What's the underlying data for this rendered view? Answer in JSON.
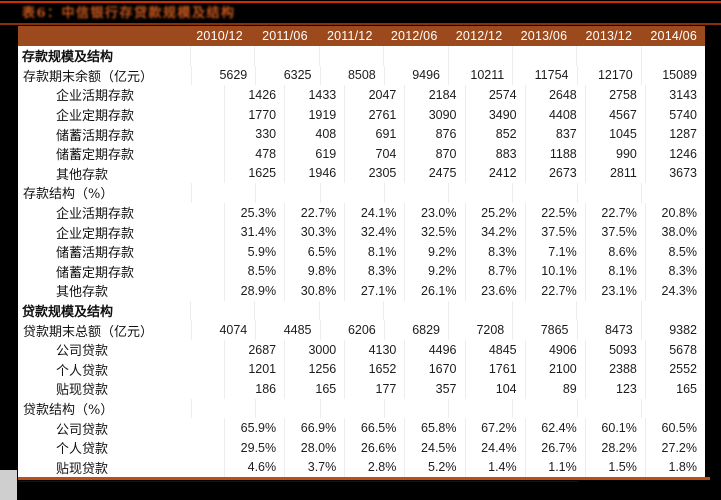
{
  "title": "表6：中信银行存贷款规模及结构",
  "columns": [
    "2010/12",
    "2011/06",
    "2011/12",
    "2012/06",
    "2012/12",
    "2013/06",
    "2013/12",
    "2014/06"
  ],
  "table": {
    "rows": [
      {
        "type": "section",
        "label": "存款规模及结构",
        "values": []
      },
      {
        "type": "sub",
        "label": "存款期末余额（亿元）",
        "values": [
          "5629",
          "6325",
          "8508",
          "9496",
          "10211",
          "11754",
          "12170",
          "15089"
        ]
      },
      {
        "type": "item",
        "label": "企业活期存款",
        "values": [
          "1426",
          "1433",
          "2047",
          "2184",
          "2574",
          "2648",
          "2758",
          "3143"
        ]
      },
      {
        "type": "item",
        "label": "企业定期存款",
        "values": [
          "1770",
          "1919",
          "2761",
          "3090",
          "3490",
          "4408",
          "4567",
          "5740"
        ]
      },
      {
        "type": "item",
        "label": "储蓄活期存款",
        "values": [
          "330",
          "408",
          "691",
          "876",
          "852",
          "837",
          "1045",
          "1287"
        ]
      },
      {
        "type": "item",
        "label": "储蓄定期存款",
        "values": [
          "478",
          "619",
          "704",
          "870",
          "883",
          "1188",
          "990",
          "1246"
        ]
      },
      {
        "type": "item",
        "label": "其他存款",
        "values": [
          "1625",
          "1946",
          "2305",
          "2475",
          "2412",
          "2673",
          "2811",
          "3673"
        ]
      },
      {
        "type": "sub",
        "label": "存款结构（%）",
        "values": []
      },
      {
        "type": "item",
        "label": "企业活期存款",
        "values": [
          "25.3%",
          "22.7%",
          "24.1%",
          "23.0%",
          "25.2%",
          "22.5%",
          "22.7%",
          "20.8%"
        ]
      },
      {
        "type": "item",
        "label": "企业定期存款",
        "values": [
          "31.4%",
          "30.3%",
          "32.4%",
          "32.5%",
          "34.2%",
          "37.5%",
          "37.5%",
          "38.0%"
        ]
      },
      {
        "type": "item",
        "label": "储蓄活期存款",
        "values": [
          "5.9%",
          "6.5%",
          "8.1%",
          "9.2%",
          "8.3%",
          "7.1%",
          "8.6%",
          "8.5%"
        ]
      },
      {
        "type": "item",
        "label": "储蓄定期存款",
        "values": [
          "8.5%",
          "9.8%",
          "8.3%",
          "9.2%",
          "8.7%",
          "10.1%",
          "8.1%",
          "8.3%"
        ]
      },
      {
        "type": "item",
        "label": "其他存款",
        "values": [
          "28.9%",
          "30.8%",
          "27.1%",
          "26.1%",
          "23.6%",
          "22.7%",
          "23.1%",
          "24.3%"
        ]
      },
      {
        "type": "section",
        "label": "贷款规模及结构",
        "values": []
      },
      {
        "type": "sub",
        "label": "贷款期末总额（亿元）",
        "values": [
          "4074",
          "4485",
          "6206",
          "6829",
          "7208",
          "7865",
          "8473",
          "9382"
        ]
      },
      {
        "type": "item",
        "label": "公司贷款",
        "values": [
          "2687",
          "3000",
          "4130",
          "4496",
          "4845",
          "4906",
          "5093",
          "5678"
        ]
      },
      {
        "type": "item",
        "label": "个人贷款",
        "values": [
          "1201",
          "1256",
          "1652",
          "1670",
          "1761",
          "2100",
          "2388",
          "2552"
        ]
      },
      {
        "type": "item",
        "label": "贴现贷款",
        "values": [
          "186",
          "165",
          "177",
          "357",
          "104",
          "89",
          "123",
          "165"
        ]
      },
      {
        "type": "sub",
        "label": "贷款结构（%）",
        "values": []
      },
      {
        "type": "item",
        "label": "公司贷款",
        "values": [
          "65.9%",
          "66.9%",
          "66.5%",
          "65.8%",
          "67.2%",
          "62.4%",
          "60.1%",
          "60.5%"
        ]
      },
      {
        "type": "item",
        "label": "个人贷款",
        "values": [
          "29.5%",
          "28.0%",
          "26.6%",
          "24.5%",
          "24.4%",
          "26.7%",
          "28.2%",
          "27.2%"
        ]
      },
      {
        "type": "item",
        "label": "贴现贷款",
        "values": [
          "4.6%",
          "3.7%",
          "2.8%",
          "5.2%",
          "1.4%",
          "1.1%",
          "1.5%",
          "1.8%"
        ]
      }
    ]
  },
  "colors": {
    "page_background": "#000000",
    "header_background": "#9c4a1d",
    "header_text": "#ffffff",
    "title_text": "#c2551b",
    "top_rule": "#ce2f00",
    "bottom_rule": "#bd4e14",
    "body_background": "#ffffff",
    "body_text": "#1c1c1c"
  }
}
